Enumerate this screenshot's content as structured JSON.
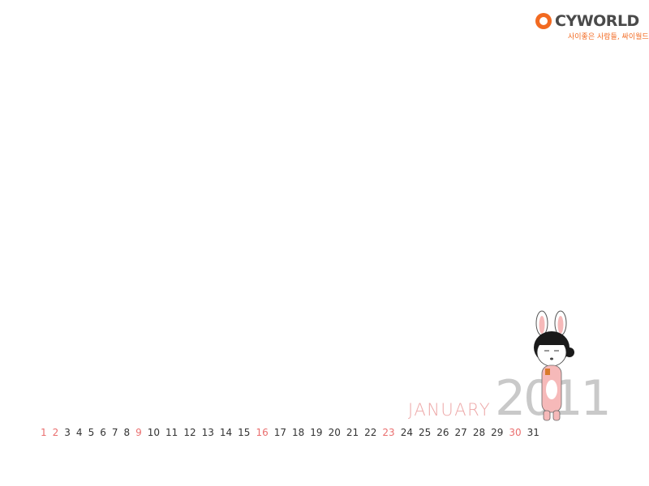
{
  "brand": {
    "logo_text": "CYWORLD",
    "tagline": "사이좋은 사람들, 싸이월드",
    "accent_color": "#f26a21",
    "icon": "cyworld-smile-icon"
  },
  "calendar": {
    "month": "JANUARY",
    "year": "2011",
    "days": [
      "1",
      "2",
      "3",
      "4",
      "5",
      "6",
      "7",
      "8",
      "9",
      "10",
      "11",
      "12",
      "13",
      "14",
      "15",
      "16",
      "17",
      "18",
      "19",
      "20",
      "21",
      "22",
      "23",
      "24",
      "25",
      "26",
      "27",
      "28",
      "29",
      "30",
      "31"
    ],
    "highlighted_days": [
      "1",
      "2",
      "9",
      "16",
      "23",
      "30"
    ],
    "highlight_color": "#ea6f6f"
  },
  "character": {
    "icon": "bunny-costume-girl-illustration"
  }
}
